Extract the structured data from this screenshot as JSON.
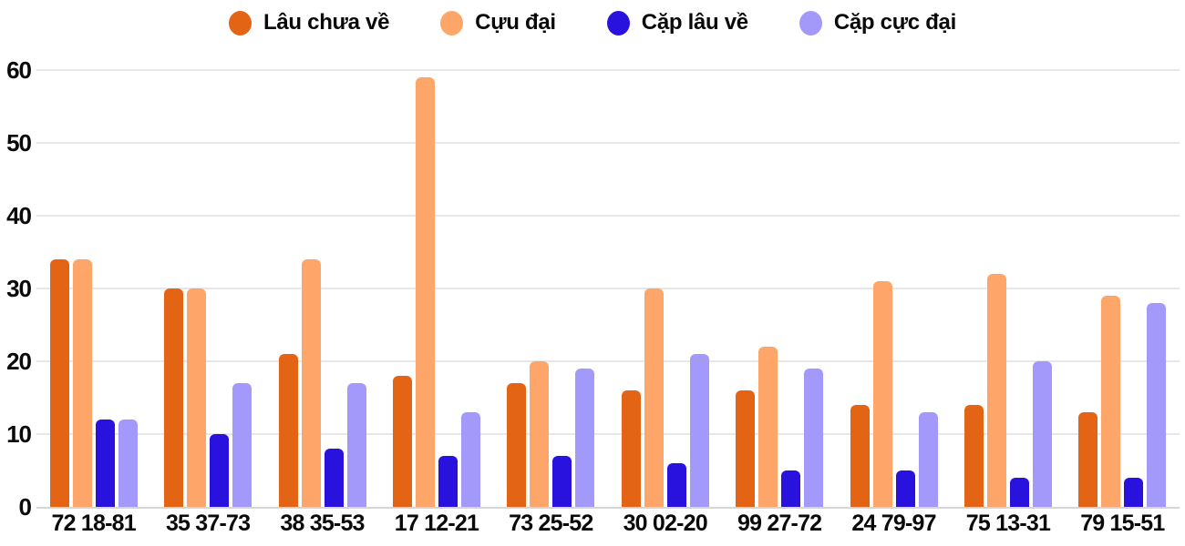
{
  "chart_data": {
    "type": "bar",
    "title": "",
    "xlabel": "",
    "ylabel": "",
    "categories": [
      "72 18-81",
      "35 37-73",
      "38 35-53",
      "17 12-21",
      "73 25-52",
      "30 02-20",
      "99 27-72",
      "24 79-97",
      "75 13-31",
      "79 15-51"
    ],
    "series": [
      {
        "name": "Lâu chưa về",
        "color": "#E36414",
        "values": [
          34,
          30,
          21,
          18,
          17,
          16,
          16,
          14,
          14,
          13
        ]
      },
      {
        "name": "Cựu đại",
        "color": "#FEA569",
        "values": [
          34,
          30,
          34,
          59,
          20,
          30,
          22,
          31,
          32,
          29
        ]
      },
      {
        "name": "Cặp lâu về",
        "color": "#2A12DE",
        "values": [
          12,
          10,
          8,
          7,
          7,
          6,
          5,
          5,
          4,
          4
        ]
      },
      {
        "name": "Cặp cực đại",
        "color": "#A399FA",
        "values": [
          12,
          17,
          17,
          13,
          19,
          21,
          19,
          13,
          20,
          28
        ]
      }
    ],
    "y_ticks": [
      0,
      10,
      20,
      30,
      40,
      50,
      60
    ],
    "ylim": [
      0,
      60
    ],
    "grid": true,
    "legend_position": "top",
    "gridline_color": "#E7E7E7",
    "axis_line_color": "#D6D6D6",
    "text_color": "#0A0A0A",
    "background": "#FFFFFF"
  }
}
